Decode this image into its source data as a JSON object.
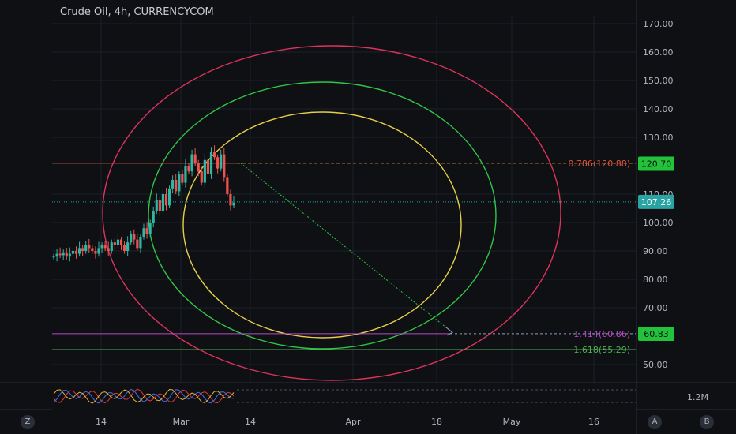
{
  "header": {
    "title": "Crude Oil, 4h, CURRENCYCOM"
  },
  "chart_data": {
    "type": "candlestick",
    "title": "Crude Oil, 4h, CURRENCYCOM",
    "ylim": [
      45,
      175
    ],
    "y_ticks": [
      "170.00",
      "160.00",
      "150.00",
      "140.00",
      "130.00",
      "110.00",
      "100.00",
      "90.00",
      "80.00",
      "70.00",
      "50.00"
    ],
    "y_tick_values": [
      170,
      160,
      150,
      140,
      130,
      110,
      100,
      90,
      80,
      70,
      50
    ],
    "x_ticks": [
      "14",
      "Mar",
      "14",
      "Apr",
      "18",
      "May",
      "16"
    ],
    "price_badges": [
      {
        "label": "120.70",
        "value": 120.7,
        "color": "#22c33a"
      },
      {
        "label": "107.26",
        "value": 107.26,
        "color": "#2aa3a3"
      },
      {
        "label": "60.83",
        "value": 60.83,
        "color": "#22c33a"
      }
    ],
    "fib_levels": [
      {
        "label": "0.786(120.88)",
        "value": 120.88,
        "color": "#e0533a"
      },
      {
        "label": "1.414(60.86)",
        "value": 60.86,
        "color": "#b449c6"
      },
      {
        "label": "1.618(55.29)",
        "value": 55.29,
        "color": "#4caf50"
      }
    ],
    "price_series": [
      88,
      89,
      88.5,
      89.5,
      88,
      89,
      90,
      89,
      91,
      90,
      92,
      91,
      90,
      89,
      91,
      92,
      91,
      90,
      93,
      92,
      94,
      92,
      90,
      93,
      96,
      94,
      91,
      95,
      98,
      96,
      100,
      104,
      108,
      104,
      110,
      106,
      112,
      115,
      111,
      117,
      114,
      120,
      118,
      124,
      121,
      118,
      114,
      122,
      117,
      125,
      123,
      119,
      124,
      116,
      110,
      106,
      107
    ],
    "volume_label": "1.2M",
    "circles": [
      "yellow",
      "green",
      "red"
    ]
  },
  "corners": {
    "left": "Z",
    "a": "A",
    "b": "B"
  }
}
